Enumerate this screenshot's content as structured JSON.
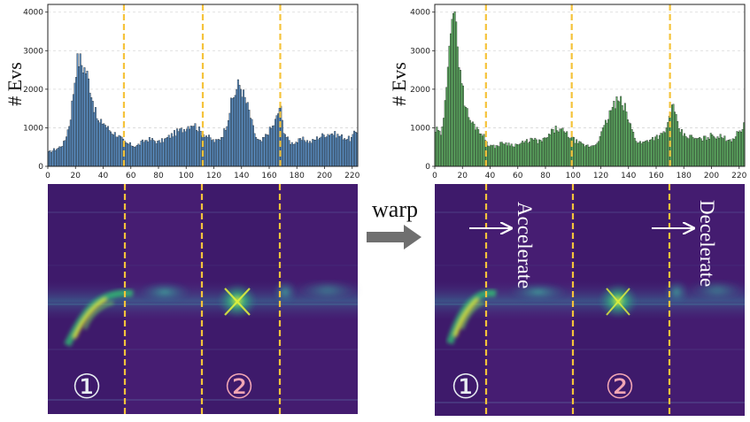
{
  "chart_data": [
    {
      "type": "bar",
      "panel": "left",
      "ylabel": "# Evs",
      "xlim": [
        0,
        224
      ],
      "ylim": [
        0,
        4200
      ],
      "xticks": [
        0,
        20,
        40,
        60,
        80,
        100,
        120,
        140,
        160,
        180,
        200,
        220
      ],
      "yticks": [
        0,
        1000,
        2000,
        3000,
        4000
      ],
      "grid": "horizontal dashed",
      "bar_color": "#5a8ec3",
      "dividers_x": [
        55,
        112,
        168
      ],
      "divider_color": "#f5c33b",
      "keypoints": [
        [
          0,
          350
        ],
        [
          4,
          420
        ],
        [
          8,
          480
        ],
        [
          12,
          620
        ],
        [
          16,
          1150
        ],
        [
          19,
          2100
        ],
        [
          21,
          2700
        ],
        [
          23,
          2780
        ],
        [
          25,
          2620
        ],
        [
          28,
          2450
        ],
        [
          31,
          2000
        ],
        [
          34,
          1450
        ],
        [
          37,
          1100
        ],
        [
          40,
          1160
        ],
        [
          43,
          1000
        ],
        [
          46,
          900
        ],
        [
          50,
          820
        ],
        [
          53,
          720
        ],
        [
          56,
          600
        ],
        [
          60,
          560
        ],
        [
          64,
          520
        ],
        [
          68,
          620
        ],
        [
          72,
          700
        ],
        [
          76,
          680
        ],
        [
          80,
          620
        ],
        [
          85,
          700
        ],
        [
          90,
          820
        ],
        [
          94,
          900
        ],
        [
          98,
          960
        ],
        [
          102,
          1060
        ],
        [
          105,
          1120
        ],
        [
          108,
          1000
        ],
        [
          111,
          880
        ],
        [
          114,
          820
        ],
        [
          118,
          700
        ],
        [
          121,
          640
        ],
        [
          124,
          700
        ],
        [
          127,
          860
        ],
        [
          130,
          1200
        ],
        [
          133,
          1700
        ],
        [
          136,
          1950
        ],
        [
          138,
          2150
        ],
        [
          140,
          2020
        ],
        [
          142,
          1800
        ],
        [
          145,
          1500
        ],
        [
          148,
          1050
        ],
        [
          151,
          700
        ],
        [
          154,
          620
        ],
        [
          157,
          760
        ],
        [
          160,
          920
        ],
        [
          163,
          1050
        ],
        [
          166,
          1300
        ],
        [
          168,
          1620
        ],
        [
          170,
          1000
        ],
        [
          173,
          720
        ],
        [
          176,
          600
        ],
        [
          180,
          640
        ],
        [
          185,
          700
        ],
        [
          190,
          620
        ],
        [
          195,
          740
        ],
        [
          200,
          820
        ],
        [
          205,
          860
        ],
        [
          210,
          800
        ],
        [
          215,
          740
        ],
        [
          219,
          700
        ],
        [
          223,
          920
        ]
      ],
      "seed": 17
    },
    {
      "type": "bar",
      "panel": "right",
      "ylabel": "# Evs",
      "xlim": [
        0,
        224
      ],
      "ylim": [
        0,
        4200
      ],
      "xticks": [
        0,
        20,
        40,
        60,
        80,
        100,
        120,
        140,
        160,
        180,
        200,
        220
      ],
      "yticks": [
        0,
        1000,
        2000,
        3000,
        4000
      ],
      "grid": "horizontal dashed",
      "bar_color": "#5fae63",
      "dividers_x": [
        37,
        99,
        170
      ],
      "divider_color": "#f5c33b",
      "keypoints": [
        [
          0,
          900
        ],
        [
          2,
          950
        ],
        [
          4,
          800
        ],
        [
          6,
          1000
        ],
        [
          8,
          1800
        ],
        [
          10,
          3200
        ],
        [
          12,
          3900
        ],
        [
          13,
          4080
        ],
        [
          15,
          3600
        ],
        [
          17,
          3000
        ],
        [
          19,
          2400
        ],
        [
          21,
          1800
        ],
        [
          23,
          1450
        ],
        [
          26,
          1150
        ],
        [
          29,
          1050
        ],
        [
          32,
          950
        ],
        [
          35,
          800
        ],
        [
          38,
          600
        ],
        [
          42,
          500
        ],
        [
          46,
          550
        ],
        [
          50,
          620
        ],
        [
          55,
          560
        ],
        [
          60,
          560
        ],
        [
          65,
          620
        ],
        [
          70,
          700
        ],
        [
          75,
          640
        ],
        [
          80,
          700
        ],
        [
          85,
          900
        ],
        [
          88,
          980
        ],
        [
          92,
          920
        ],
        [
          96,
          820
        ],
        [
          100,
          700
        ],
        [
          104,
          600
        ],
        [
          108,
          540
        ],
        [
          112,
          520
        ],
        [
          116,
          560
        ],
        [
          120,
          800
        ],
        [
          124,
          1150
        ],
        [
          128,
          1500
        ],
        [
          131,
          1650
        ],
        [
          134,
          1680
        ],
        [
          137,
          1550
        ],
        [
          140,
          1200
        ],
        [
          143,
          900
        ],
        [
          146,
          650
        ],
        [
          150,
          600
        ],
        [
          155,
          700
        ],
        [
          160,
          760
        ],
        [
          165,
          820
        ],
        [
          168,
          1000
        ],
        [
          171,
          1600
        ],
        [
          173,
          1450
        ],
        [
          176,
          1000
        ],
        [
          180,
          800
        ],
        [
          185,
          760
        ],
        [
          190,
          700
        ],
        [
          195,
          720
        ],
        [
          200,
          800
        ],
        [
          205,
          780
        ],
        [
          210,
          720
        ],
        [
          215,
          700
        ],
        [
          219,
          850
        ],
        [
          223,
          1050
        ]
      ],
      "seed": 29
    }
  ],
  "annotations": {
    "warp_label": "warp",
    "marker_1": "①",
    "marker_2": "②",
    "accelerate": "Accelerate",
    "decelerate": "Decelerate"
  },
  "colors": {
    "map_background": "#3e1a6b",
    "map_shaded": "#481e73",
    "blob_green": "#2ab179",
    "blob_yellow": "#d9e82a",
    "marker_1": "#e8eef2",
    "marker_2": "#f2a6b4",
    "arrow_gray": "#6f6f6f"
  }
}
